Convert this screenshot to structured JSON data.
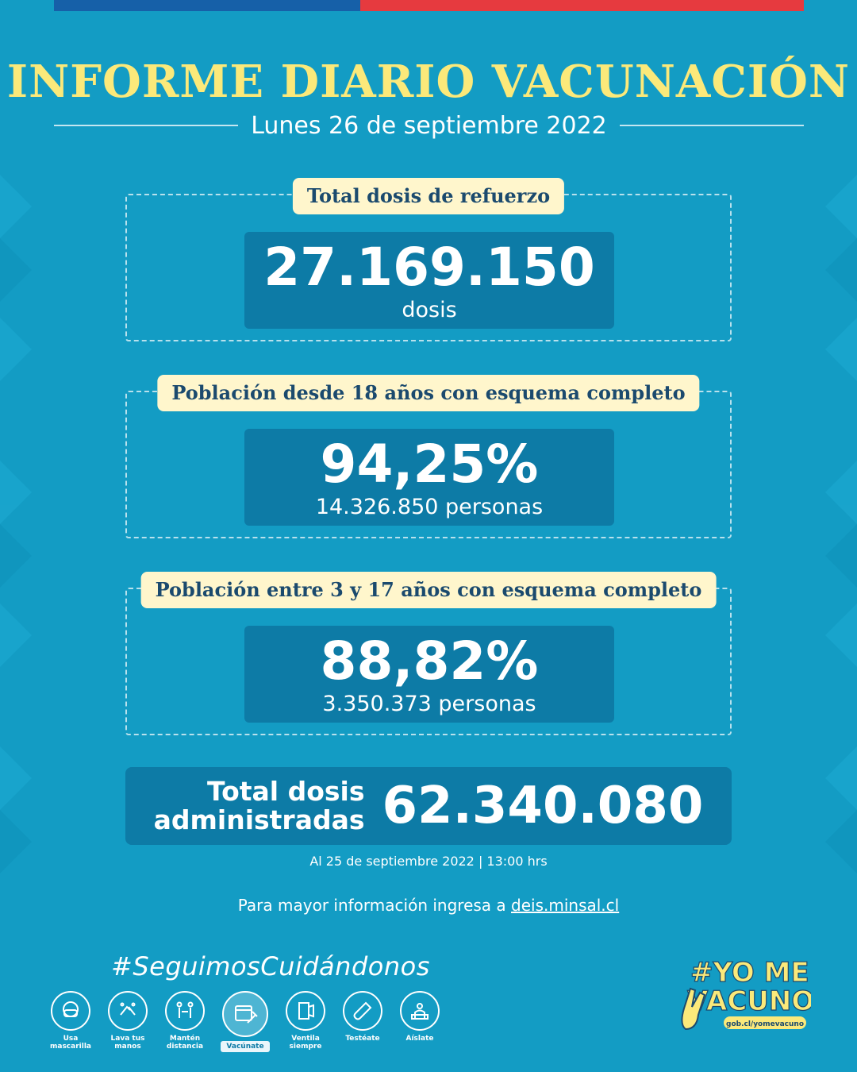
{
  "header": {
    "title": "INFORME DIARIO VACUNACIÓN",
    "date": "Lunes 26 de septiembre 2022"
  },
  "cards": [
    {
      "label": "Total dosis de refuerzo",
      "value": "27.169.150",
      "sub": "dosis"
    },
    {
      "label": "Población desde 18 años con esquema completo",
      "value": "94,25%",
      "sub": "14.326.850 personas"
    },
    {
      "label": "Población entre 3 y 17 años con esquema completo",
      "value": "88,82%",
      "sub": "3.350.373 personas"
    }
  ],
  "total": {
    "label_line1": "Total dosis",
    "label_line2": "administradas",
    "value": "62.340.080"
  },
  "footer": {
    "cutoff": "Al 25 de septiembre 2022 | 13:00 hrs",
    "more_info_text": "Para mayor información ingresa a ",
    "more_info_link": "deis.minsal.cl",
    "hashtag": "#SeguimosCuidándonos",
    "icons": [
      {
        "label": "Usa mascarilla",
        "icon": "mask-icon"
      },
      {
        "label": "Lava tus manos",
        "icon": "hands-wash-icon"
      },
      {
        "label": "Mantén distancia",
        "icon": "distance-icon"
      },
      {
        "label": "Vacúnate",
        "icon": "vaccine-icon",
        "active": true
      },
      {
        "label": "Ventila siempre",
        "icon": "window-icon"
      },
      {
        "label": "Testéate",
        "icon": "test-tube-icon"
      },
      {
        "label": "Aíslate",
        "icon": "isolate-icon"
      }
    ],
    "campaign_line1": "#YO ME",
    "campaign_line2": "VACUNO",
    "campaign_url": "gob.cl/yomevacuno"
  },
  "colors": {
    "background": "#139cc4",
    "box": "#0d7ba6",
    "title_yellow": "#fbe97a",
    "label_bg": "#fff6cc",
    "label_text": "#1b4a6e",
    "flag_blue": "#1660a8",
    "flag_red": "#e63a3f"
  }
}
